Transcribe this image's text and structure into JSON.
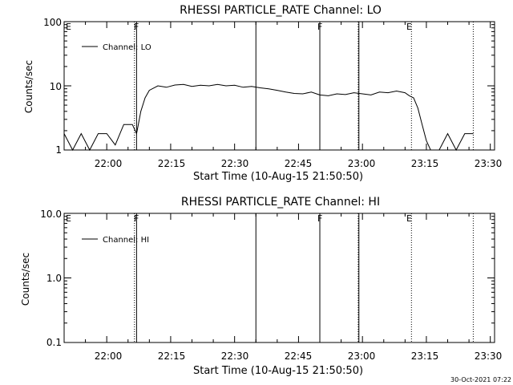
{
  "chart_data": [
    {
      "type": "line",
      "title": "RHESSI PARTICLE_RATE Channel: LO",
      "xlabel": "Start Time (10-Aug-15 21:50:50)",
      "ylabel": "Counts/sec",
      "yscale": "log",
      "ylim": [
        1,
        100
      ],
      "xlim": [
        "21:50",
        "23:31"
      ],
      "x_ticks": [
        "22:00",
        "22:15",
        "22:30",
        "22:45",
        "23:00",
        "23:15",
        "23:30"
      ],
      "y_ticks": [
        "1",
        "10",
        "100"
      ],
      "legend": {
        "label": "Channel: LO",
        "placement": "top-left"
      },
      "annotations": [
        "E",
        "F",
        "F",
        "E"
      ],
      "series": [
        {
          "name": "Channel: LO",
          "x": [
            "21:50",
            "21:52",
            "21:54",
            "21:56",
            "21:58",
            "22:00",
            "22:02",
            "22:04",
            "22:06",
            "22:07",
            "22:08",
            "22:09",
            "22:10",
            "22:12",
            "22:14",
            "22:16",
            "22:18",
            "22:20",
            "22:22",
            "22:24",
            "22:26",
            "22:28",
            "22:30",
            "22:32",
            "22:34",
            "22:36",
            "22:38",
            "22:40",
            "22:42",
            "22:44",
            "22:46",
            "22:48",
            "22:50",
            "22:52",
            "22:54",
            "22:56",
            "22:58",
            "23:00",
            "23:02",
            "23:04",
            "23:06",
            "23:08",
            "23:10",
            "23:11",
            "23:12",
            "23:13",
            "23:14",
            "23:15",
            "23:16",
            "23:18",
            "23:20",
            "23:22",
            "23:24",
            "23:26"
          ],
          "values": [
            1.8,
            0.9,
            1.8,
            1.0,
            1.8,
            1.8,
            1.2,
            2.5,
            2.5,
            1.8,
            4.0,
            6.5,
            8.5,
            10.0,
            9.5,
            10.3,
            10.5,
            9.8,
            10.2,
            10.0,
            10.5,
            10.0,
            10.2,
            9.5,
            9.8,
            9.3,
            9.0,
            8.5,
            8.0,
            7.6,
            7.5,
            8.0,
            7.2,
            7.0,
            7.5,
            7.3,
            7.8,
            7.5,
            7.2,
            8.0,
            7.8,
            8.3,
            7.8,
            7.0,
            6.5,
            4.5,
            2.5,
            1.4,
            0.8,
            1.0,
            1.8,
            1.0,
            1.8,
            1.8
          ]
        }
      ]
    },
    {
      "type": "line",
      "title": "RHESSI PARTICLE_RATE Channel: HI",
      "xlabel": "Start Time (10-Aug-15 21:50:50)",
      "ylabel": "Counts/sec",
      "yscale": "log",
      "ylim": [
        0.1,
        10
      ],
      "xlim": [
        "21:50",
        "23:31"
      ],
      "x_ticks": [
        "22:00",
        "22:15",
        "22:30",
        "22:45",
        "23:00",
        "23:15",
        "23:30"
      ],
      "y_ticks": [
        "0.1",
        "1.0",
        "10.0"
      ],
      "legend": {
        "label": "Channel: HI",
        "placement": "top-left"
      },
      "annotations": [
        "E",
        "F",
        "F",
        "E"
      ],
      "series": [
        {
          "name": "Channel: HI",
          "x": [],
          "values": []
        }
      ]
    }
  ],
  "timestamp": "30-Oct-2021 07:22"
}
